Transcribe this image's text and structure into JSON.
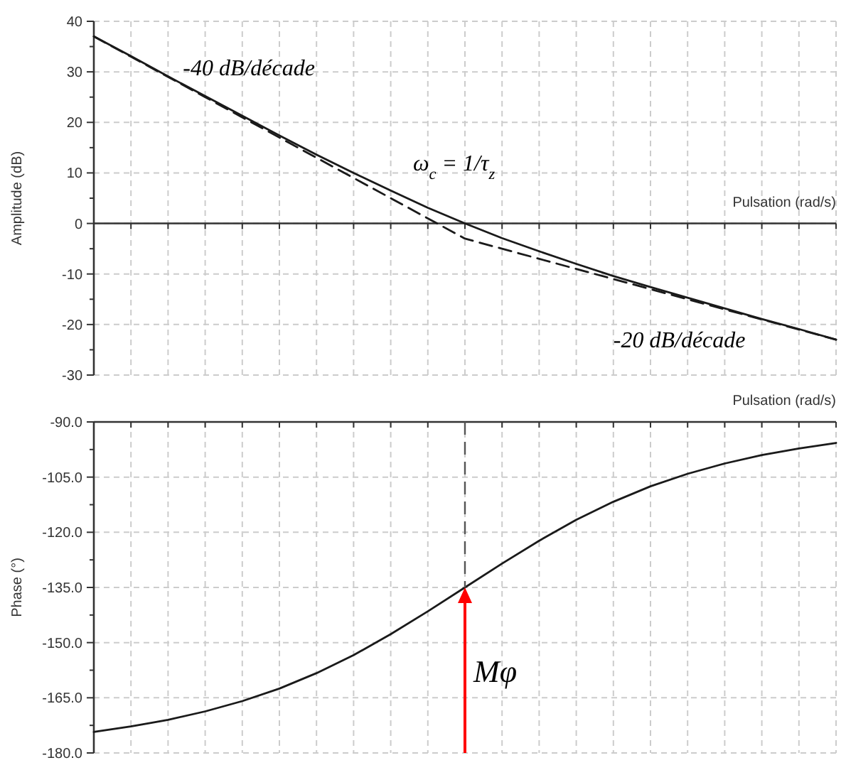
{
  "chart_data": [
    {
      "type": "line",
      "ylabel": "Amplitude (dB)",
      "xlabel": "Pulsation (rad/s)",
      "grid": true,
      "tick_labels": "y",
      "categories": [
        null,
        null,
        null,
        null,
        null,
        null,
        null,
        null,
        null,
        null,
        null,
        null,
        null,
        null,
        null,
        null,
        null,
        null,
        null,
        null,
        null
      ],
      "ylim": [
        -30,
        40
      ],
      "yticks": [
        -30,
        {
          "value": -25,
          "label": null
        },
        -20,
        {
          "value": -15,
          "label": null
        },
        -10,
        {
          "value": -5,
          "label": null
        },
        0,
        {
          "value": 5,
          "label": null
        },
        10,
        {
          "value": 15,
          "label": null
        },
        20,
        {
          "value": 25,
          "label": null
        },
        30,
        {
          "value": 35,
          "label": null
        },
        40
      ],
      "series": [
        {
          "color": "#1a1a1a",
          "line_style": "solid",
          "values": [
            37.0,
            33.1,
            29.1,
            25.2,
            21.3,
            17.4,
            13.6,
            10.0,
            6.5,
            3.1,
            0.0,
            -2.9,
            -5.5,
            -8.0,
            -10.4,
            -12.6,
            -14.7,
            -16.8,
            -18.9,
            -20.9,
            -23.0
          ]
        },
        {
          "color": "#1a1a1a",
          "line_style": "dashed",
          "values": [
            37,
            33,
            29,
            25,
            21,
            17,
            13,
            9,
            5,
            1,
            -3,
            -5,
            -7,
            -9,
            -11,
            -13,
            -15,
            -17,
            -19,
            -21,
            -23
          ]
        }
      ],
      "annotations": [
        "-40 dB/décade",
        "ω$_{c}$ = 1/τ$_{z}$",
        "-20 dB/décade"
      ]
    },
    {
      "type": "line",
      "ylabel": "Phase (°)",
      "xlabel": "Pulsation (rad/s)",
      "grid": true,
      "tick_labels": "y",
      "categories": [
        null,
        null,
        null,
        null,
        null,
        null,
        null,
        null,
        null,
        null,
        null,
        null,
        null,
        null,
        null,
        null,
        null,
        null,
        null,
        null,
        null
      ],
      "ylim": [
        -180,
        -90
      ],
      "yticks": [
        {
          "value": -180,
          "label": "-180.0"
        },
        {
          "value": -172.5,
          "label": null
        },
        {
          "value": -165,
          "label": "-165.0"
        },
        {
          "value": -157.5,
          "label": null
        },
        {
          "value": -150,
          "label": "-150.0"
        },
        {
          "value": -142.5,
          "label": null
        },
        {
          "value": -135,
          "label": "-135.0"
        },
        {
          "value": -127.5,
          "label": null
        },
        {
          "value": -120,
          "label": "-120.0"
        },
        {
          "value": -112.5,
          "label": null
        },
        {
          "value": -105,
          "label": "-105.0"
        },
        {
          "value": -97.5,
          "label": null
        },
        {
          "value": -90,
          "label": "-90.0"
        }
      ],
      "series": [
        {
          "color": "#1a1a1a",
          "line_style": "solid",
          "values": [
            -174.3,
            -172.8,
            -171.0,
            -168.7,
            -165.9,
            -162.5,
            -158.3,
            -153.4,
            -147.7,
            -141.5,
            -135.0,
            -128.5,
            -122.3,
            -116.6,
            -111.7,
            -107.5,
            -104.1,
            -101.3,
            -99.0,
            -97.2,
            -95.7
          ]
        }
      ],
      "annotations": [
        "Mφ"
      ]
    }
  ]
}
